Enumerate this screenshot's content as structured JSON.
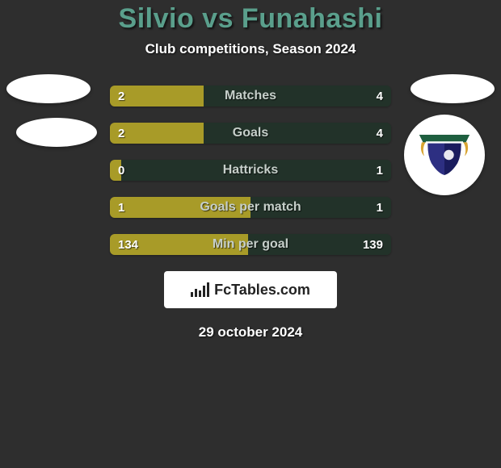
{
  "background_color": "#2e2e2e",
  "title": "Silvio vs Funahashi",
  "title_color": "#5a9f8c",
  "subtitle": "Club competitions, Season 2024",
  "subtitle_color": "#ffffff",
  "left_color": "#a89b28",
  "right_color": "#223229",
  "label_color": "#c6cfca",
  "value_color": "#ffffff",
  "rows": [
    {
      "label": "Matches",
      "left": "2",
      "right": "4",
      "left_pct": 33.3
    },
    {
      "label": "Goals",
      "left": "2",
      "right": "4",
      "left_pct": 33.3
    },
    {
      "label": "Hattricks",
      "left": "0",
      "right": "1",
      "left_pct": 4.0
    },
    {
      "label": "Goals per match",
      "left": "1",
      "right": "1",
      "left_pct": 50.0
    },
    {
      "label": "Min per goal",
      "left": "134",
      "right": "139",
      "left_pct": 49.1
    }
  ],
  "logo_text": "FcTables.com",
  "date": "29 october 2024",
  "crest": {
    "banner_color": "#1e5f3f",
    "shield_left": "#2d2f82",
    "shield_right": "#1a1c5e",
    "tassel_color": "#d9a430"
  }
}
